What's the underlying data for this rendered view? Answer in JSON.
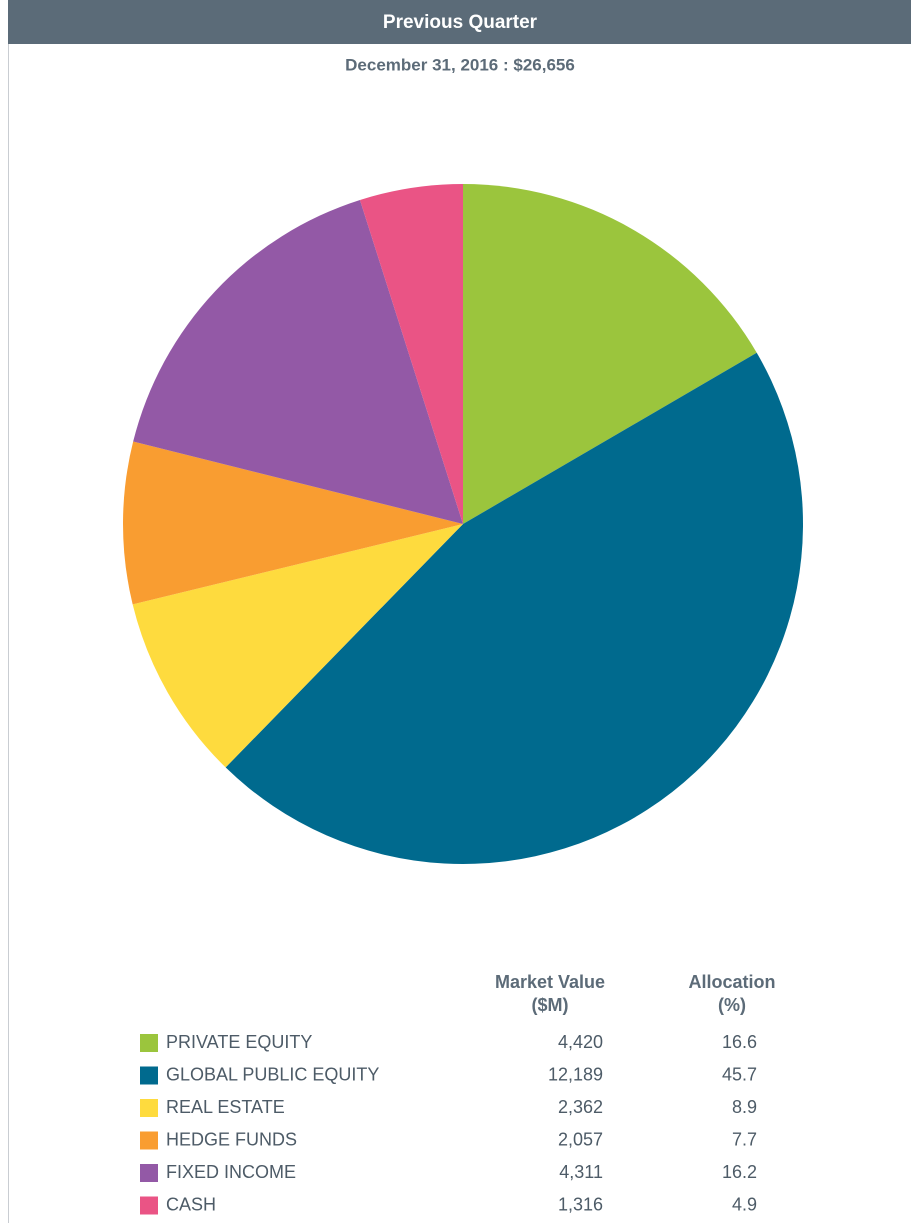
{
  "chart_data": {
    "type": "pie",
    "title": "Previous Quarter",
    "subtitle": "December 31, 2016 : $26,656",
    "categories": [
      "PRIVATE EQUITY",
      "GLOBAL PUBLIC EQUITY",
      "REAL ESTATE",
      "HEDGE FUNDS",
      "FIXED INCOME",
      "CASH"
    ],
    "values": [
      16.6,
      45.7,
      8.9,
      7.7,
      16.2,
      4.9
    ],
    "colors": [
      "#9bc53d",
      "#006a8e",
      "#fedb3e",
      "#f99d31",
      "#9359a6",
      "#ea5485"
    ],
    "market_values": [
      4420,
      12189,
      2362,
      2057,
      4311,
      1316
    ],
    "market_value_labels": [
      "4,420",
      "12,189",
      "2,362",
      "2,057",
      "4,311",
      "1,316"
    ],
    "column_headers": [
      [
        "Market Value",
        "($M)"
      ],
      [
        "Allocation",
        "(%)"
      ]
    ]
  }
}
